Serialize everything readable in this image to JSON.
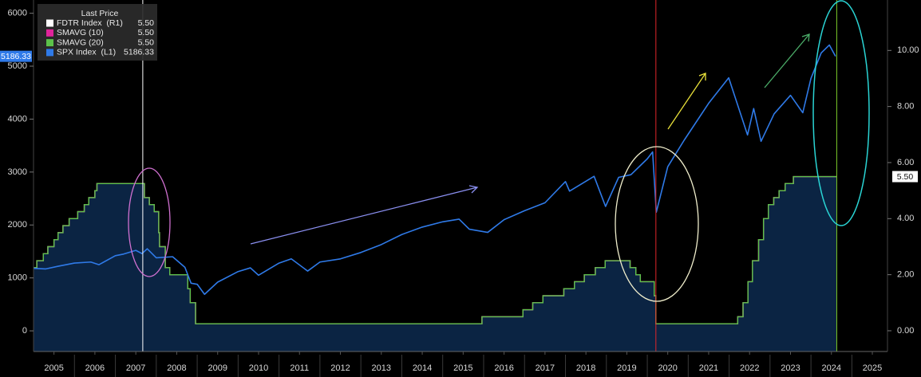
{
  "chart_data": {
    "type": "line",
    "xlim": [
      2005,
      2025.87
    ],
    "xticks": [
      {
        "value": 2005.5,
        "label": "2005"
      },
      {
        "value": 2006.5,
        "label": "2006"
      },
      {
        "value": 2007.5,
        "label": "2007"
      },
      {
        "value": 2008.5,
        "label": "2008"
      },
      {
        "value": 2009.5,
        "label": "2009"
      },
      {
        "value": 2010.5,
        "label": "2010"
      },
      {
        "value": 2011.5,
        "label": "2011"
      },
      {
        "value": 2012.5,
        "label": "2012"
      },
      {
        "value": 2013.5,
        "label": "2013"
      },
      {
        "value": 2014.5,
        "label": "2014"
      },
      {
        "value": 2015.5,
        "label": "2015"
      },
      {
        "value": 2016.5,
        "label": "2016"
      },
      {
        "value": 2017.5,
        "label": "2017"
      },
      {
        "value": 2018.5,
        "label": "2018"
      },
      {
        "value": 2019.5,
        "label": "2019"
      },
      {
        "value": 2020.5,
        "label": "2020"
      },
      {
        "value": 2021.5,
        "label": "2021"
      },
      {
        "value": 2022.5,
        "label": "2022"
      },
      {
        "value": 2023.5,
        "label": "2023"
      },
      {
        "value": 2024.5,
        "label": "2024"
      },
      {
        "value": 2025.5,
        "label": "2025"
      }
    ],
    "ylim": [
      -390,
      6250
    ],
    "yticks": [
      0,
      1000,
      2000,
      3000,
      4000,
      5000,
      6000
    ],
    "y2lim": [
      -0.74,
      11.8
    ],
    "y2ticks": [
      {
        "value": 0,
        "label": "0.00"
      },
      {
        "value": 2,
        "label": "2.00"
      },
      {
        "value": 4,
        "label": "4.00"
      },
      {
        "value": 6,
        "label": "6.00"
      },
      {
        "value": 8,
        "label": "8.00"
      },
      {
        "value": 10,
        "label": "10.00"
      }
    ],
    "grid": false,
    "legend_title": "Last Price",
    "legend_position": "upper left",
    "vertical_lines": [
      {
        "x": 2007.67,
        "color": "#ffffff"
      },
      {
        "x": 2020.21,
        "color": "#e0262a"
      },
      {
        "x": 2024.63,
        "color": "#7ccc2a"
      }
    ],
    "series": [
      {
        "name": "FDTR Index  (R1)",
        "axis": "y2",
        "style": "step-area",
        "color": "#ffffff",
        "fill": "#0b2443",
        "last_value_label": "5.50",
        "x": [
          2005.0,
          2005.08,
          2005.24,
          2005.35,
          2005.5,
          2005.6,
          2005.72,
          2005.87,
          2006.08,
          2006.24,
          2006.35,
          2006.5,
          2006.55,
          2007.71,
          2007.83,
          2007.95,
          2008.06,
          2008.08,
          2008.22,
          2008.33,
          2008.77,
          2008.83,
          2008.96,
          2015.96,
          2016.96,
          2017.2,
          2017.45,
          2017.96,
          2018.22,
          2018.46,
          2018.73,
          2018.97,
          2019.58,
          2019.72,
          2019.83,
          2020.17,
          2020.21,
          2022.21,
          2022.34,
          2022.46,
          2022.57,
          2022.72,
          2022.84,
          2022.96,
          2023.09,
          2023.22,
          2023.37,
          2023.57,
          2024.63
        ],
        "values": [
          2.25,
          2.5,
          2.75,
          3.0,
          3.25,
          3.5,
          3.75,
          4.0,
          4.25,
          4.5,
          4.75,
          5.0,
          5.25,
          4.75,
          4.5,
          4.25,
          3.5,
          3.0,
          2.25,
          2.0,
          1.5,
          1.0,
          0.25,
          0.5,
          0.75,
          1.0,
          1.25,
          1.5,
          1.75,
          2.0,
          2.25,
          2.5,
          2.25,
          2.0,
          1.75,
          1.25,
          0.25,
          0.5,
          1.0,
          1.75,
          2.5,
          3.25,
          4.0,
          4.5,
          4.75,
          5.0,
          5.25,
          5.5,
          5.5
        ]
      },
      {
        "name": "SMAVG (10)",
        "axis": "y2",
        "style": "step",
        "color": "#e0249a",
        "last_value_label": "5.50",
        "x": [
          2005.0,
          2005.08,
          2005.24,
          2005.35,
          2005.5,
          2005.6,
          2005.72,
          2005.87,
          2006.08,
          2006.24,
          2006.35,
          2006.5,
          2006.55,
          2007.71,
          2007.83,
          2007.95,
          2008.06,
          2008.08,
          2008.22,
          2008.33,
          2008.77,
          2008.83,
          2008.96,
          2015.96,
          2016.96,
          2017.2,
          2017.45,
          2017.96,
          2018.22,
          2018.46,
          2018.73,
          2018.97,
          2019.58,
          2019.72,
          2019.83,
          2020.17,
          2020.21,
          2022.21,
          2022.34,
          2022.46,
          2022.57,
          2022.72,
          2022.84,
          2022.96,
          2023.09,
          2023.22,
          2023.37,
          2023.57,
          2024.63
        ],
        "values": [
          2.25,
          2.5,
          2.75,
          3.0,
          3.25,
          3.5,
          3.75,
          4.0,
          4.25,
          4.5,
          4.75,
          5.0,
          5.25,
          4.75,
          4.5,
          4.25,
          3.5,
          3.0,
          2.25,
          2.0,
          1.5,
          1.0,
          0.25,
          0.5,
          0.75,
          1.0,
          1.25,
          1.5,
          1.75,
          2.0,
          2.25,
          2.5,
          2.25,
          2.0,
          1.75,
          1.25,
          0.25,
          0.5,
          1.0,
          1.75,
          2.5,
          3.25,
          4.0,
          4.5,
          4.75,
          5.0,
          5.25,
          5.5,
          5.5
        ]
      },
      {
        "name": "SMAVG (20)",
        "axis": "y2",
        "style": "step",
        "color": "#5cc24a",
        "last_value_label": "5.50",
        "x": [
          2005.0,
          2005.08,
          2005.24,
          2005.35,
          2005.5,
          2005.6,
          2005.72,
          2005.87,
          2006.08,
          2006.24,
          2006.35,
          2006.5,
          2006.55,
          2007.71,
          2007.83,
          2007.95,
          2008.06,
          2008.08,
          2008.22,
          2008.33,
          2008.77,
          2008.83,
          2008.96,
          2015.96,
          2016.96,
          2017.2,
          2017.45,
          2017.96,
          2018.22,
          2018.46,
          2018.73,
          2018.97,
          2019.58,
          2019.72,
          2019.83,
          2020.17,
          2020.21,
          2022.21,
          2022.34,
          2022.46,
          2022.57,
          2022.72,
          2022.84,
          2022.96,
          2023.09,
          2023.22,
          2023.37,
          2023.57,
          2024.63
        ],
        "values": [
          2.25,
          2.5,
          2.75,
          3.0,
          3.25,
          3.5,
          3.75,
          4.0,
          4.25,
          4.5,
          4.75,
          5.0,
          5.25,
          4.75,
          4.5,
          4.25,
          3.5,
          3.0,
          2.25,
          2.0,
          1.5,
          1.0,
          0.25,
          0.5,
          0.75,
          1.0,
          1.25,
          1.5,
          1.75,
          2.0,
          2.25,
          2.5,
          2.25,
          2.0,
          1.75,
          1.25,
          0.25,
          0.5,
          1.0,
          1.75,
          2.5,
          3.25,
          4.0,
          4.5,
          4.75,
          5.0,
          5.25,
          5.5,
          5.5
        ]
      },
      {
        "name": "SPX Index  (L1)",
        "axis": "y",
        "style": "line",
        "color": "#2f7ae8",
        "last_value_label": "5186.33",
        "x": [
          2005.0,
          2005.3,
          2005.6,
          2006.0,
          2006.4,
          2006.6,
          2007.0,
          2007.2,
          2007.5,
          2007.65,
          2007.78,
          2008.0,
          2008.4,
          2008.7,
          2008.85,
          2009.0,
          2009.18,
          2009.5,
          2010.0,
          2010.3,
          2010.5,
          2011.0,
          2011.3,
          2011.7,
          2012.0,
          2012.5,
          2013.0,
          2013.5,
          2014.0,
          2014.5,
          2015.0,
          2015.4,
          2015.65,
          2016.1,
          2016.5,
          2017.0,
          2017.5,
          2018.0,
          2018.1,
          2018.7,
          2018.98,
          2019.3,
          2019.6,
          2020.0,
          2020.13,
          2020.22,
          2020.5,
          2020.9,
          2021.5,
          2021.99,
          2022.45,
          2022.6,
          2022.78,
          2023.1,
          2023.5,
          2023.8,
          2024.0,
          2024.25,
          2024.45,
          2024.6
        ],
        "values": [
          1180,
          1170,
          1220,
          1280,
          1300,
          1250,
          1420,
          1450,
          1520,
          1460,
          1550,
          1380,
          1400,
          1200,
          900,
          880,
          690,
          920,
          1120,
          1190,
          1050,
          1280,
          1360,
          1130,
          1300,
          1360,
          1480,
          1630,
          1820,
          1960,
          2060,
          2110,
          1920,
          1860,
          2100,
          2270,
          2420,
          2820,
          2640,
          2920,
          2350,
          2900,
          2950,
          3250,
          3380,
          2240,
          3100,
          3600,
          4300,
          4780,
          3700,
          4200,
          3580,
          4100,
          4450,
          4120,
          4770,
          5250,
          5400,
          5186.33
        ]
      }
    ]
  }
}
